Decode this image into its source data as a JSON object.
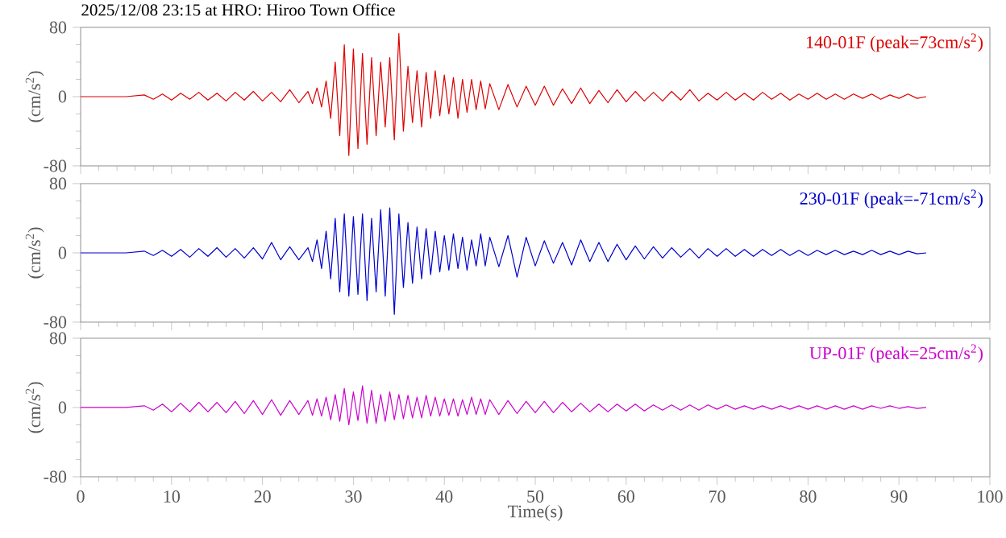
{
  "chart_data": [
    {
      "type": "line",
      "title": "2025/12/08 23:15 at HRO: Hiroo Town Office",
      "ylabel": "(cm/s$^{2}$)",
      "xlim": [
        0,
        100
      ],
      "ylim": [
        -80,
        80
      ],
      "xticks": [
        0,
        10,
        20,
        30,
        40,
        50,
        60,
        70,
        80,
        90,
        100
      ],
      "yticks": [
        -80,
        0,
        80
      ],
      "tick_labels": "y",
      "x": [
        0,
        5,
        7,
        8,
        9,
        10,
        11,
        12,
        13,
        14,
        15,
        16,
        17,
        18,
        19,
        20,
        21,
        22,
        23,
        24,
        25,
        25.5,
        26,
        26.5,
        27,
        27.5,
        28,
        28.5,
        29,
        29.5,
        30,
        30.5,
        31,
        31.5,
        32,
        32.5,
        33,
        33.5,
        34,
        34.5,
        35,
        35.5,
        36,
        36.5,
        37,
        37.5,
        38,
        38.5,
        39,
        39.5,
        40,
        40.5,
        41,
        41.5,
        42,
        42.5,
        43,
        43.5,
        44,
        44.5,
        45,
        46,
        47,
        48,
        49,
        50,
        51,
        52,
        53,
        54,
        55,
        56,
        57,
        58,
        59,
        60,
        61,
        62,
        63,
        64,
        65,
        66,
        67,
        68,
        69,
        70,
        71,
        72,
        73,
        74,
        75,
        76,
        77,
        78,
        79,
        80,
        81,
        82,
        83,
        84,
        85,
        86,
        87,
        88,
        89,
        90,
        91,
        92,
        93
      ],
      "series": [
        {
          "name": "140-01F (peak=73cm/s$^{2}$)",
          "color": "#dd0000",
          "values": [
            0,
            0,
            2,
            -3,
            3,
            -4,
            4,
            -3,
            5,
            -4,
            4,
            -5,
            5,
            -4,
            6,
            -5,
            5,
            -6,
            8,
            -7,
            6,
            -8,
            10,
            -12,
            18,
            -25,
            40,
            -45,
            60,
            -68,
            55,
            -60,
            50,
            -55,
            45,
            -45,
            40,
            -35,
            45,
            -50,
            73,
            -40,
            35,
            -30,
            30,
            -35,
            28,
            -25,
            30,
            -22,
            25,
            -20,
            22,
            -25,
            20,
            -18,
            20,
            -15,
            18,
            -14,
            15,
            -15,
            14,
            -12,
            12,
            -10,
            12,
            -10,
            9,
            -8,
            10,
            -8,
            7,
            -7,
            8,
            -6,
            6,
            -5,
            5,
            -5,
            6,
            -4,
            8,
            -5,
            4,
            -4,
            5,
            -4,
            4,
            -4,
            5,
            -3,
            4,
            -4,
            3,
            -3,
            4,
            -3,
            3,
            -3,
            3,
            -2,
            3,
            -3,
            2,
            -2,
            3,
            -2,
            0
          ]
        }
      ]
    },
    {
      "type": "line",
      "ylabel": "(cm/s$^{2}$)",
      "xlim": [
        0,
        100
      ],
      "ylim": [
        -80,
        80
      ],
      "xticks": [
        0,
        10,
        20,
        30,
        40,
        50,
        60,
        70,
        80,
        90,
        100
      ],
      "yticks": [
        -80,
        0,
        80
      ],
      "tick_labels": "y",
      "x": [
        0,
        5,
        7,
        8,
        9,
        10,
        11,
        12,
        13,
        14,
        15,
        16,
        17,
        18,
        19,
        20,
        21,
        22,
        23,
        24,
        25,
        25.5,
        26,
        26.5,
        27,
        27.5,
        28,
        28.5,
        29,
        29.5,
        30,
        30.5,
        31,
        31.5,
        32,
        32.5,
        33,
        33.5,
        34,
        34.5,
        35,
        35.5,
        36,
        36.5,
        37,
        37.5,
        38,
        38.5,
        39,
        39.5,
        40,
        40.5,
        41,
        41.5,
        42,
        42.5,
        43,
        43.5,
        44,
        44.5,
        45,
        46,
        47,
        48,
        49,
        50,
        51,
        52,
        53,
        54,
        55,
        56,
        57,
        58,
        59,
        60,
        61,
        62,
        63,
        64,
        65,
        66,
        67,
        68,
        69,
        70,
        71,
        72,
        73,
        74,
        75,
        76,
        77,
        78,
        79,
        80,
        81,
        82,
        83,
        84,
        85,
        86,
        87,
        88,
        89,
        90,
        91,
        92,
        93
      ],
      "series": [
        {
          "name": "230-01F (peak=-71cm/s$^{2}$)",
          "color": "#0000cc",
          "values": [
            0,
            0,
            2,
            -3,
            3,
            -4,
            4,
            -5,
            5,
            -4,
            6,
            -5,
            5,
            -6,
            6,
            -7,
            12,
            -8,
            7,
            -8,
            6,
            -10,
            15,
            -18,
            25,
            -30,
            40,
            -45,
            45,
            -50,
            42,
            -48,
            45,
            -55,
            40,
            -45,
            50,
            -50,
            52,
            -71,
            45,
            -40,
            35,
            -35,
            30,
            -30,
            28,
            -25,
            25,
            -22,
            20,
            -20,
            22,
            -18,
            18,
            -20,
            15,
            -15,
            22,
            -15,
            18,
            -16,
            20,
            -28,
            18,
            -15,
            14,
            -12,
            12,
            -14,
            15,
            -10,
            12,
            -10,
            10,
            -8,
            8,
            -7,
            7,
            -6,
            6,
            -5,
            5,
            -6,
            5,
            -4,
            5,
            -4,
            4,
            -4,
            4,
            -3,
            4,
            -3,
            3,
            -3,
            3,
            -2,
            3,
            -2,
            2,
            -2,
            3,
            -2,
            2,
            -2,
            2,
            -1,
            0
          ]
        }
      ]
    },
    {
      "type": "line",
      "xlabel": "Time(s)",
      "ylabel": "(cm/s$^{2}$)",
      "xlim": [
        0,
        100
      ],
      "ylim": [
        -80,
        80
      ],
      "xticks": [
        0,
        10,
        20,
        30,
        40,
        50,
        60,
        70,
        80,
        90,
        100
      ],
      "yticks": [
        -80,
        0,
        80
      ],
      "x": [
        0,
        5,
        7,
        8,
        9,
        10,
        11,
        12,
        13,
        14,
        15,
        16,
        17,
        18,
        19,
        20,
        21,
        22,
        23,
        24,
        25,
        25.5,
        26,
        26.5,
        27,
        27.5,
        28,
        28.5,
        29,
        29.5,
        30,
        30.5,
        31,
        31.5,
        32,
        32.5,
        33,
        33.5,
        34,
        34.5,
        35,
        35.5,
        36,
        36.5,
        37,
        37.5,
        38,
        38.5,
        39,
        39.5,
        40,
        40.5,
        41,
        41.5,
        42,
        42.5,
        43,
        43.5,
        44,
        44.5,
        45,
        46,
        47,
        48,
        49,
        50,
        51,
        52,
        53,
        54,
        55,
        56,
        57,
        58,
        59,
        60,
        61,
        62,
        63,
        64,
        65,
        66,
        67,
        68,
        69,
        70,
        71,
        72,
        73,
        74,
        75,
        76,
        77,
        78,
        79,
        80,
        81,
        82,
        83,
        84,
        85,
        86,
        87,
        88,
        89,
        90,
        91,
        92,
        93
      ],
      "series": [
        {
          "name": "UP-01F (peak=25cm/s$^{2}$)",
          "color": "#cc00cc",
          "values": [
            0,
            0,
            2,
            -3,
            4,
            -5,
            5,
            -5,
            6,
            -5,
            6,
            -6,
            7,
            -7,
            8,
            -8,
            9,
            -9,
            8,
            -8,
            8,
            -9,
            10,
            -10,
            12,
            -14,
            15,
            -16,
            22,
            -20,
            18,
            -15,
            25,
            -18,
            20,
            -18,
            15,
            -16,
            18,
            -14,
            15,
            -13,
            14,
            -12,
            12,
            -12,
            14,
            -10,
            12,
            -10,
            10,
            -9,
            10,
            -10,
            9,
            -8,
            12,
            -8,
            10,
            -8,
            9,
            -8,
            8,
            -7,
            7,
            -6,
            7,
            -6,
            6,
            -5,
            5,
            -5,
            4,
            -5,
            4,
            -4,
            4,
            -4,
            3,
            -3,
            3,
            -3,
            3,
            -3,
            3,
            -2,
            3,
            -2,
            2,
            -2,
            2,
            -2,
            2,
            -2,
            2,
            -2,
            2,
            -2,
            2,
            -2,
            2,
            -2,
            2,
            -1,
            2,
            -1,
            1,
            -1,
            0
          ]
        }
      ]
    }
  ]
}
